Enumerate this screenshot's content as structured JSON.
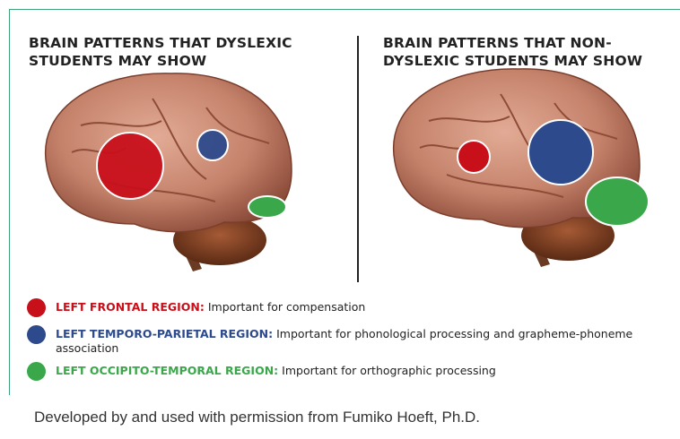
{
  "panels": [
    {
      "title_lines": [
        "BRAIN PATTERNS THAT DYSLEXIC",
        "STUDENTS MAY SHOW"
      ]
    },
    {
      "title_lines": [
        "BRAIN PATTERNS THAT NON-",
        "DYSLEXIC STUDENTS MAY SHOW"
      ]
    }
  ],
  "legend": [
    {
      "label": "LEFT FRONTAL REGION:",
      "description": "Important for compensation"
    },
    {
      "label": "LEFT TEMPORO-PARIETAL REGION:",
      "description": "Important for phonological processing and grapheme-phoneme association"
    },
    {
      "label": "LEFT OCCIPITO-TEMPORAL REGION:",
      "description": "Important for orthographic processing"
    }
  ],
  "caption": "Developed by and used with permission from Fumiko Hoeft, Ph.D."
}
